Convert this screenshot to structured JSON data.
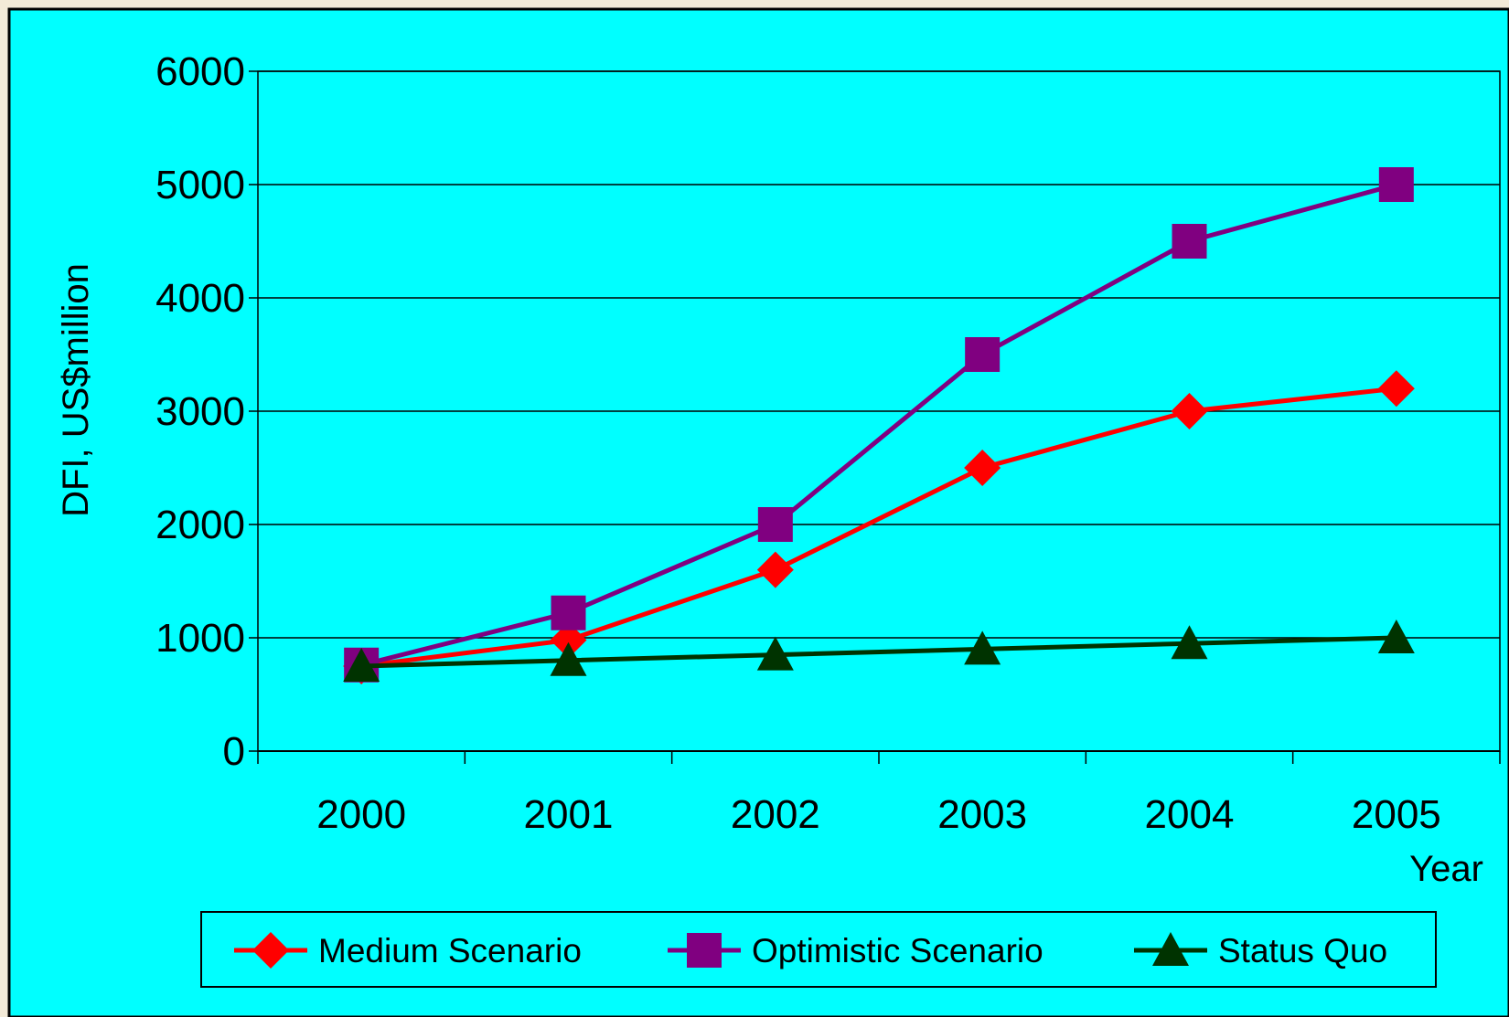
{
  "colors": {
    "panel_bg": "#00ffff",
    "outer_bg": "#f3ead8",
    "border": "#000000"
  },
  "chart_data": {
    "type": "line",
    "title": "",
    "xlabel": "Year",
    "ylabel": "DFI, US$million",
    "categories": [
      "2000",
      "2001",
      "2002",
      "2003",
      "2004",
      "2005"
    ],
    "ylim": [
      0,
      6000
    ],
    "yticks": [
      0,
      1000,
      2000,
      3000,
      4000,
      5000,
      6000
    ],
    "grid": true,
    "legend_position": "bottom",
    "series": [
      {
        "name": "Medium Scenario",
        "color": "#ff0000",
        "marker": "diamond",
        "values": [
          750,
          980,
          1600,
          2500,
          3000,
          3200
        ]
      },
      {
        "name": "Optimistic Scenario",
        "color": "#800080",
        "marker": "square",
        "values": [
          760,
          1220,
          2000,
          3500,
          4500,
          5000
        ]
      },
      {
        "name": "Status Quo",
        "color": "#003300",
        "marker": "triangle",
        "values": [
          750,
          800,
          850,
          900,
          950,
          1000
        ]
      }
    ]
  }
}
